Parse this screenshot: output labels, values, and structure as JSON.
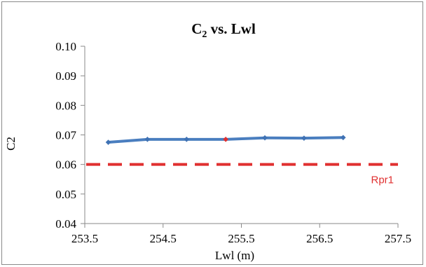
{
  "colors": {
    "series": "#4a7ebf",
    "marker": "#3f72b4",
    "highlight_marker": "#e03030",
    "reference": "#e03030",
    "axis": "#8a8a8a"
  },
  "chart_data": {
    "type": "line",
    "title": {
      "prefix": "C",
      "subscript": "2",
      "suffix": " vs. Lwl"
    },
    "xlabel": "Lwl (m)",
    "ylabel": "C2",
    "xlim": [
      253.5,
      257.5
    ],
    "ylim": [
      0.04,
      0.1
    ],
    "x_ticks": [
      "253.5",
      "254.5",
      "255.5",
      "256.5",
      "257.5"
    ],
    "y_ticks": [
      "0.04",
      "0.05",
      "0.06",
      "0.07",
      "0.08",
      "0.09",
      "0.10"
    ],
    "grid": false,
    "legend": "none",
    "series": [
      {
        "x": [
          253.8,
          254.3,
          254.8,
          255.3,
          255.8,
          256.3,
          256.8
        ],
        "y": [
          0.0675,
          0.0685,
          0.0685,
          0.0685,
          0.069,
          0.0689,
          0.0691
        ],
        "highlight_index": 3
      }
    ],
    "reference_lines": [
      {
        "name": "Rpr1",
        "y": 0.06,
        "style": "dashed"
      }
    ]
  }
}
